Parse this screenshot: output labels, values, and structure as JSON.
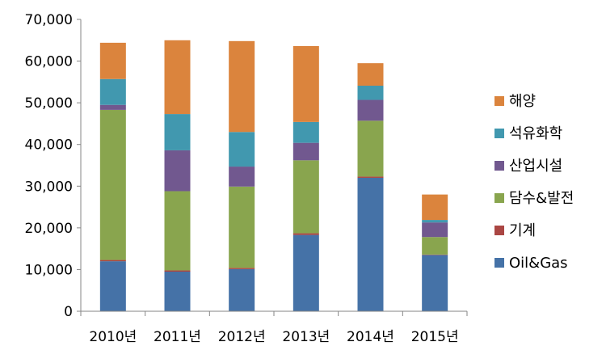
{
  "chart_data": {
    "type": "bar",
    "stacked": true,
    "title": "",
    "xlabel": "",
    "ylabel": "",
    "ylim": [
      0,
      70000
    ],
    "yticks": [
      "0",
      "10,000",
      "20,000",
      "30,000",
      "40,000",
      "50,000",
      "60,000",
      "70,000"
    ],
    "grid": false,
    "legend_position": "right",
    "categories": [
      "2010년",
      "2011년",
      "2012년",
      "2013년",
      "2014년",
      "2015년"
    ],
    "series": [
      {
        "name": "Oil&Gas",
        "color": "#4572A7",
        "values": [
          12000,
          9500,
          10100,
          18300,
          32000,
          13500
        ]
      },
      {
        "name": "기계",
        "color": "#AA4643",
        "values": [
          300,
          300,
          300,
          400,
          300,
          100
        ]
      },
      {
        "name": "담수&발전",
        "color": "#89A54E",
        "values": [
          36000,
          19000,
          19500,
          17500,
          13400,
          4200
        ]
      },
      {
        "name": "산업시설",
        "color": "#71588F",
        "values": [
          1200,
          9800,
          4800,
          4200,
          5000,
          3500
        ]
      },
      {
        "name": "석유화학",
        "color": "#4198AF",
        "values": [
          6200,
          8700,
          8300,
          5000,
          3400,
          600
        ]
      },
      {
        "name": "해양",
        "color": "#DB843D",
        "values": [
          8700,
          17700,
          21800,
          18200,
          5400,
          6100
        ]
      }
    ]
  }
}
